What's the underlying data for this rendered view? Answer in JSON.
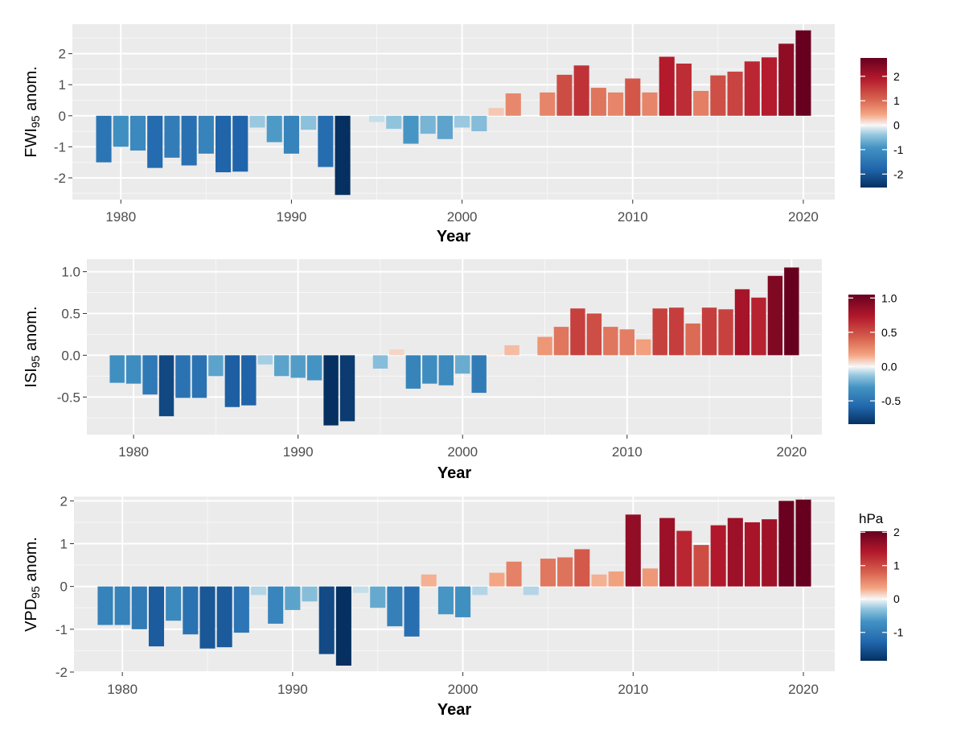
{
  "chart_data": [
    {
      "type": "bar",
      "ylabel": "FWI",
      "ylabel_sub": "95",
      "ylabel_suffix": " anom.",
      "xlabel": "Year",
      "x_ticks": [
        "1980",
        "1990",
        "2000",
        "2010",
        "2020"
      ],
      "y_ticks": [
        "2",
        "1",
        "0",
        "-1",
        "-2"
      ],
      "ylim": [
        -2.7,
        2.95
      ],
      "x": [
        1979,
        1980,
        1981,
        1982,
        1983,
        1984,
        1985,
        1986,
        1987,
        1988,
        1989,
        1990,
        1991,
        1992,
        1993,
        1994,
        1995,
        1996,
        1997,
        1998,
        1999,
        2000,
        2001,
        2002,
        2003,
        2004,
        2005,
        2006,
        2007,
        2008,
        2009,
        2010,
        2011,
        2012,
        2013,
        2014,
        2015,
        2016,
        2017,
        2018,
        2019,
        2020
      ],
      "values": [
        -1.5,
        -1.0,
        -1.12,
        -1.68,
        -1.35,
        -1.6,
        -1.22,
        -1.82,
        -1.8,
        -0.38,
        -0.85,
        -1.22,
        -0.45,
        -1.65,
        -2.55,
        -0.03,
        -0.2,
        -0.42,
        -0.9,
        -0.58,
        -0.75,
        -0.38,
        -0.5,
        0.25,
        0.72,
        0.0,
        0.75,
        1.32,
        1.62,
        0.9,
        0.75,
        1.2,
        0.75,
        1.9,
        1.68,
        0.8,
        1.3,
        1.42,
        1.75,
        1.88,
        2.32,
        2.75
      ],
      "legend": {
        "title": "",
        "labels": [
          "2",
          "1",
          "0",
          "-1",
          "-2"
        ],
        "limits": [
          -2.55,
          2.75
        ]
      },
      "grid": true
    },
    {
      "type": "bar",
      "ylabel": "ISI",
      "ylabel_sub": "95",
      "ylabel_suffix": " anom.",
      "xlabel": "Year",
      "x_ticks": [
        "1980",
        "1990",
        "2000",
        "2010",
        "2020"
      ],
      "y_ticks": [
        "1.0",
        "0.5",
        "0.0",
        "-0.5"
      ],
      "ylim": [
        -0.95,
        1.15
      ],
      "x": [
        1979,
        1980,
        1981,
        1982,
        1983,
        1984,
        1985,
        1986,
        1987,
        1988,
        1989,
        1990,
        1991,
        1992,
        1993,
        1994,
        1995,
        1996,
        1997,
        1998,
        1999,
        2000,
        2001,
        2002,
        2003,
        2004,
        2005,
        2006,
        2007,
        2008,
        2009,
        2010,
        2011,
        2012,
        2013,
        2014,
        2015,
        2016,
        2017,
        2018,
        2019,
        2020
      ],
      "values": [
        -0.33,
        -0.34,
        -0.47,
        -0.73,
        -0.51,
        -0.51,
        -0.25,
        -0.62,
        -0.6,
        -0.11,
        -0.25,
        -0.27,
        -0.3,
        -0.84,
        -0.79,
        -0.02,
        -0.16,
        0.07,
        -0.4,
        -0.34,
        -0.36,
        -0.22,
        -0.45,
        0.03,
        0.12,
        -0.02,
        0.22,
        0.34,
        0.56,
        0.5,
        0.34,
        0.31,
        0.19,
        0.56,
        0.57,
        0.38,
        0.57,
        0.55,
        0.79,
        0.69,
        0.95,
        1.05
      ],
      "legend": {
        "title": "",
        "labels": [
          "1.0",
          "0.5",
          "0.0",
          "-0.5"
        ],
        "limits": [
          -0.84,
          1.05
        ]
      },
      "grid": true
    },
    {
      "type": "bar",
      "ylabel": "VPD",
      "ylabel_sub": "95",
      "ylabel_suffix": " anom.",
      "xlabel": "Year",
      "x_ticks": [
        "1980",
        "1990",
        "2000",
        "2010",
        "2020"
      ],
      "y_ticks": [
        "2",
        "1",
        "0",
        "-1",
        "-2"
      ],
      "ylim": [
        -2.0,
        2.1
      ],
      "x": [
        1979,
        1980,
        1981,
        1982,
        1983,
        1984,
        1985,
        1986,
        1987,
        1988,
        1989,
        1990,
        1991,
        1992,
        1993,
        1994,
        1995,
        1996,
        1997,
        1998,
        1999,
        2000,
        2001,
        2002,
        2003,
        2004,
        2005,
        2006,
        2007,
        2008,
        2009,
        2010,
        2011,
        2012,
        2013,
        2014,
        2015,
        2016,
        2017,
        2018,
        2019,
        2020
      ],
      "values": [
        -0.9,
        -0.9,
        -1.0,
        -1.4,
        -0.8,
        -1.12,
        -1.45,
        -1.42,
        -1.08,
        -0.2,
        -0.87,
        -0.55,
        -0.35,
        -1.58,
        -1.85,
        -0.15,
        -0.5,
        -0.93,
        -1.17,
        0.28,
        -0.65,
        -0.72,
        -0.2,
        0.32,
        0.58,
        -0.2,
        0.65,
        0.68,
        0.87,
        0.28,
        0.35,
        1.68,
        0.42,
        1.6,
        1.3,
        0.97,
        1.43,
        1.6,
        1.5,
        1.57,
        2.0,
        2.03
      ],
      "legend": {
        "title": "hPa",
        "labels": [
          "2",
          "1",
          "0",
          "-1"
        ],
        "limits": [
          -1.85,
          2.03
        ]
      },
      "grid": true
    }
  ]
}
